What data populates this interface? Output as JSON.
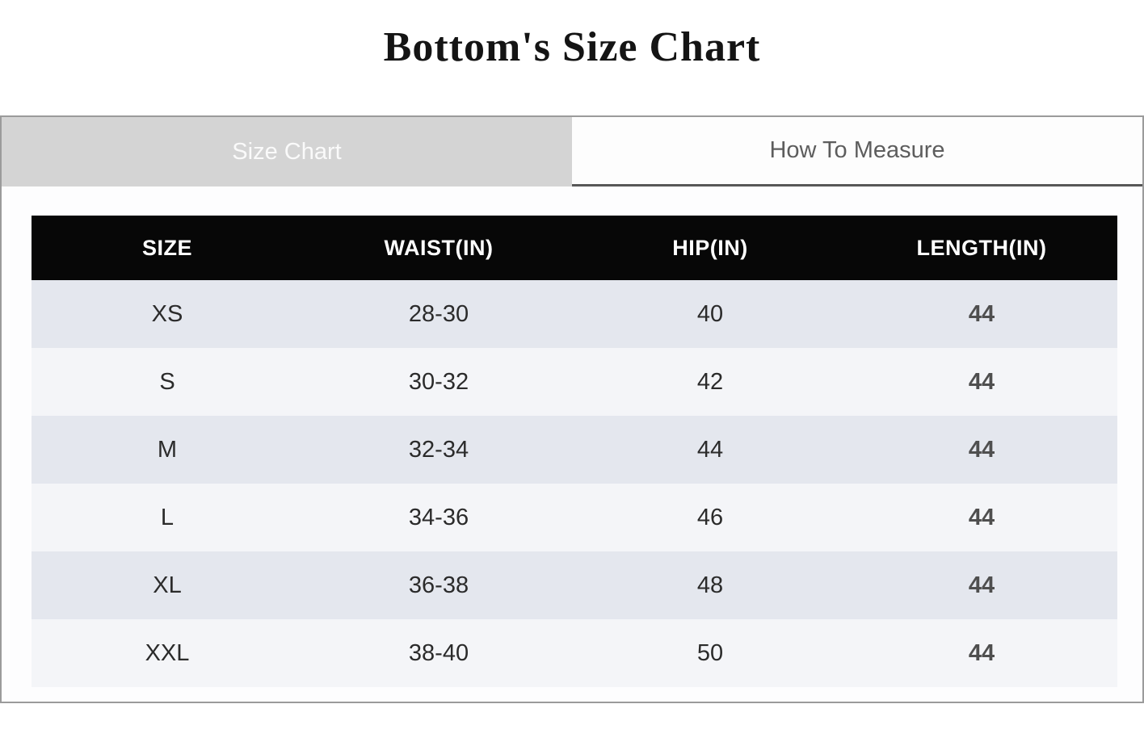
{
  "page": {
    "title": "Bottom's Size Chart"
  },
  "tabs": [
    {
      "label": "Size Chart",
      "active": true
    },
    {
      "label": "How To Measure",
      "active": false
    }
  ],
  "table": {
    "columns": [
      "SIZE",
      "WAIST(IN)",
      "HIP(IN)",
      "LENGTH(IN)"
    ],
    "rows": [
      [
        "XS",
        "28-30",
        "40",
        "44"
      ],
      [
        "S",
        "30-32",
        "42",
        "44"
      ],
      [
        "M",
        "32-34",
        "44",
        "44"
      ],
      [
        "L",
        "34-36",
        "46",
        "44"
      ],
      [
        "XL",
        "36-38",
        "48",
        "44"
      ],
      [
        "XXL",
        "38-40",
        "50",
        "44"
      ]
    ]
  },
  "colors": {
    "header_bg": "#070707",
    "header_text": "#ffffff",
    "row_odd_bg": "#e4e7ee",
    "row_even_bg": "#f4f5f8",
    "active_tab_bg": "#d4d4d4",
    "active_tab_text": "#fafafa",
    "inactive_tab_text": "#5d5d5d",
    "panel_border": "#9b9b9b",
    "length_value_text": "#4f4f4f"
  }
}
